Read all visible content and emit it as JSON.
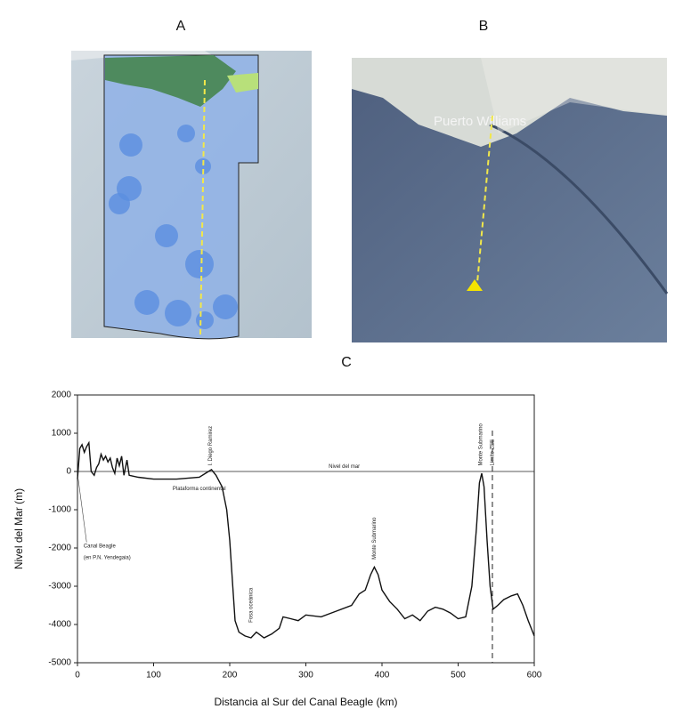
{
  "panels": {
    "a": {
      "label": "A"
    },
    "b": {
      "label": "B",
      "place": "Puerto Williams"
    },
    "c": {
      "label": "C"
    }
  },
  "chart_data": {
    "type": "line",
    "x_label": "Distancia al Sur del Canal Beagle (km)",
    "y_label": "Nivel del Mar (m)",
    "xlim": [
      0,
      600
    ],
    "xticks": [
      0,
      100,
      200,
      300,
      400,
      500,
      600
    ],
    "ylim": [
      -5000,
      2000
    ],
    "yticks": [
      -5000,
      -4000,
      -3000,
      -2000,
      -1000,
      0,
      1000,
      2000
    ],
    "sea_level": 0,
    "zee_limit": 545,
    "annotations": [
      "Canal Beagle",
      "(en P.N. Yendegaia)",
      "Plataforma continental",
      "I. Diego Ramirez",
      "Nivel del mar",
      "Fosa oceánica",
      "Monte Submarino",
      "Monte Submarino",
      "Límite ZEE"
    ],
    "series": [
      {
        "color": "#111111",
        "x": [
          0,
          3,
          6,
          9,
          12,
          15,
          18,
          22,
          25,
          28,
          31,
          34,
          37,
          40,
          43,
          46,
          49,
          52,
          55,
          58,
          61,
          65,
          68,
          80,
          100,
          130,
          160,
          172,
          176,
          182,
          190,
          196,
          200,
          204,
          207,
          212,
          220,
          228,
          235,
          245,
          255,
          265,
          270,
          280,
          290,
          300,
          320,
          340,
          360,
          370,
          378,
          385,
          390,
          395,
          400,
          410,
          420,
          430,
          440,
          450,
          460,
          470,
          480,
          490,
          500,
          510,
          518,
          524,
          528,
          531,
          534,
          538,
          542,
          546,
          552,
          560,
          570,
          578,
          585,
          592,
          600
        ],
        "values": [
          -200,
          600,
          700,
          500,
          650,
          750,
          0,
          -100,
          100,
          200,
          450,
          300,
          400,
          250,
          350,
          100,
          -50,
          350,
          150,
          400,
          -100,
          300,
          -100,
          -150,
          -200,
          -200,
          -150,
          0,
          50,
          -100,
          -400,
          -1000,
          -1800,
          -3000,
          -3900,
          -4200,
          -4300,
          -4350,
          -4200,
          -4350,
          -4250,
          -4100,
          -3800,
          -3850,
          -3900,
          -3750,
          -3800,
          -3650,
          -3500,
          -3200,
          -3100,
          -2700,
          -2500,
          -2700,
          -3100,
          -3400,
          -3600,
          -3850,
          -3750,
          -3900,
          -3650,
          -3550,
          -3600,
          -3700,
          -3850,
          -3800,
          -3000,
          -1500,
          -300,
          -50,
          -400,
          -1800,
          -3000,
          -3600,
          -3500,
          -3350,
          -3250,
          -3200,
          -3500,
          -3900,
          -4300
        ]
      }
    ]
  }
}
